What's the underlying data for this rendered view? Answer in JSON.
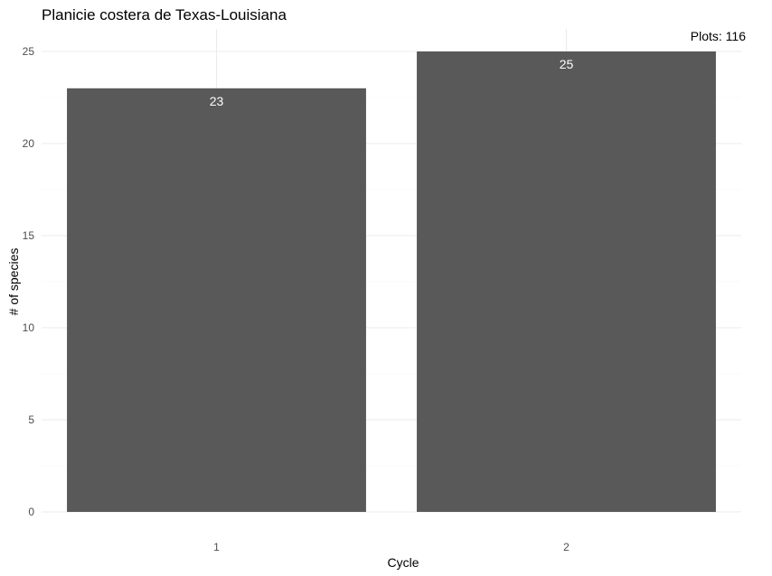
{
  "chart_data": {
    "type": "bar",
    "title": "Planicie costera de Texas-Louisiana",
    "annotation": "Plots: 116",
    "xlabel": "Cycle",
    "ylabel": "# of species",
    "categories": [
      "1",
      "2"
    ],
    "values": [
      23,
      25
    ],
    "data_labels": [
      "23",
      "25"
    ],
    "ylim": [
      0,
      25
    ],
    "yticks": [
      "0",
      "5",
      "10",
      "15",
      "20",
      "25"
    ],
    "grid": true,
    "bar_color": "#595959",
    "label_color": "#ffffff"
  }
}
